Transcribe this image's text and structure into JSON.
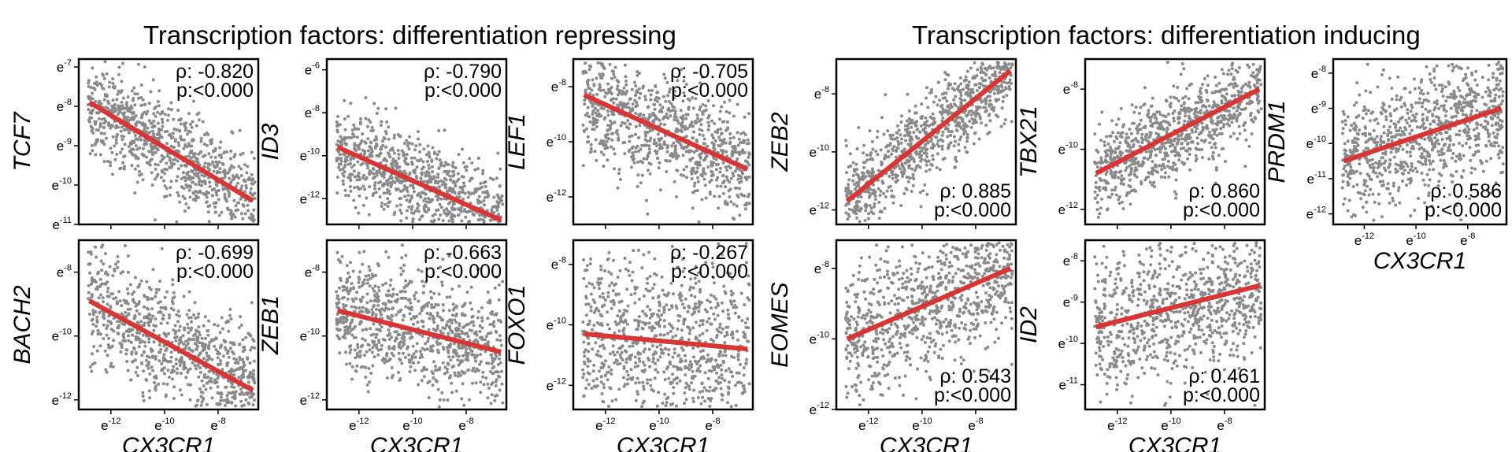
{
  "group_titles": {
    "left": "Transcription factors: differentiation repressing",
    "right": "Transcription factors: differentiation inducing"
  },
  "colors": {
    "points": "#8a8a8a",
    "fit_line": "#d93535",
    "frame": "#000000"
  },
  "chart_data": [
    {
      "type": "scatter",
      "id": "TCF7",
      "ylabel": "TCF7",
      "xlabel": "",
      "rho": "-0.820",
      "p": "<0.000",
      "xticks": [
        "-12",
        "-10",
        "-8"
      ],
      "yticks": [
        "-7",
        "-8",
        "-9",
        "-10",
        "-11"
      ],
      "xlim": [
        -13.2,
        -6.5
      ],
      "ylim": [
        -11,
        -6.8
      ],
      "fit": [
        [
          -12.8,
          -7.9
        ],
        [
          -6.7,
          -10.4
        ]
      ],
      "stats_pos": "top-right"
    },
    {
      "type": "scatter",
      "id": "ID3",
      "ylabel": "ID3",
      "xlabel": "",
      "rho": "-0.790",
      "p": "<0.000",
      "xticks": [
        "-12",
        "-10",
        "-8"
      ],
      "yticks": [
        "-6",
        "-8",
        "-10",
        "-12"
      ],
      "xlim": [
        -13.2,
        -6.5
      ],
      "ylim": [
        -13.2,
        -5.5
      ],
      "fit": [
        [
          -12.8,
          -9.6
        ],
        [
          -6.7,
          -13.0
        ]
      ],
      "stats_pos": "top-right"
    },
    {
      "type": "scatter",
      "id": "LEF1",
      "ylabel": "LEF1",
      "xlabel": "",
      "rho": "-0.705",
      "p": "<0.000",
      "xticks": [
        "-12",
        "-10",
        "-8"
      ],
      "yticks": [
        "-8",
        "-10",
        "-12"
      ],
      "xlim": [
        -13.2,
        -6.5
      ],
      "ylim": [
        -13,
        -7
      ],
      "fit": [
        [
          -12.8,
          -8.3
        ],
        [
          -6.7,
          -11.0
        ]
      ],
      "stats_pos": "top-right"
    },
    {
      "type": "scatter",
      "id": "BACH2",
      "ylabel": "BACH2",
      "xlabel": "CX3CR1",
      "rho": "-0.699",
      "p": "<0.000",
      "xticks": [
        "-12",
        "-10",
        "-8"
      ],
      "yticks": [
        "-8",
        "-10",
        "-12"
      ],
      "xlim": [
        -13.2,
        -6.5
      ],
      "ylim": [
        -12.3,
        -7
      ],
      "fit": [
        [
          -12.8,
          -8.9
        ],
        [
          -6.7,
          -11.7
        ]
      ],
      "stats_pos": "top-right"
    },
    {
      "type": "scatter",
      "id": "ZEB1",
      "ylabel": "ZEB1",
      "xlabel": "CX3CR1",
      "rho": "-0.663",
      "p": "<0.000",
      "xticks": [
        "-12",
        "-10",
        "-8"
      ],
      "yticks": [
        "-8",
        "-10",
        "-12"
      ],
      "xlim": [
        -13.2,
        -6.5
      ],
      "ylim": [
        -12.3,
        -7
      ],
      "fit": [
        [
          -12.8,
          -9.2
        ],
        [
          -6.7,
          -10.5
        ]
      ],
      "stats_pos": "top-right"
    },
    {
      "type": "scatter",
      "id": "FOXO1",
      "ylabel": "FOXO1",
      "xlabel": "CX3CR1",
      "rho": "-0.267",
      "p": "<0.000",
      "xticks": [
        "-12",
        "-10",
        "-8"
      ],
      "yticks": [
        "-8",
        "-10",
        "-12"
      ],
      "xlim": [
        -13.2,
        -6.5
      ],
      "ylim": [
        -12.8,
        -7.2
      ],
      "fit": [
        [
          -12.8,
          -10.3
        ],
        [
          -6.7,
          -10.8
        ]
      ],
      "stats_pos": "top-right"
    },
    {
      "type": "scatter",
      "id": "ZEB2",
      "ylabel": "ZEB2",
      "xlabel": "",
      "rho": "0.885",
      "p": "<0.000",
      "xticks": [
        "-12",
        "-10",
        "-8"
      ],
      "yticks": [
        "-8",
        "-10",
        "-12"
      ],
      "xlim": [
        -13.2,
        -6.5
      ],
      "ylim": [
        -12.5,
        -6.8
      ],
      "fit": [
        [
          -12.8,
          -11.7
        ],
        [
          -6.7,
          -7.2
        ]
      ],
      "stats_pos": "bottom-right"
    },
    {
      "type": "scatter",
      "id": "TBX21",
      "ylabel": "TBX21",
      "xlabel": "",
      "rho": "0.860",
      "p": "<0.000",
      "xticks": [
        "-12",
        "-10",
        "-8"
      ],
      "yticks": [
        "-8",
        "-10",
        "-12"
      ],
      "xlim": [
        -13.2,
        -6.5
      ],
      "ylim": [
        -12.5,
        -7
      ],
      "fit": [
        [
          -12.8,
          -10.8
        ],
        [
          -6.7,
          -8.0
        ]
      ],
      "stats_pos": "bottom-right"
    },
    {
      "type": "scatter",
      "id": "PRDM1",
      "ylabel": "PRDM1",
      "xlabel": "CX3CR1",
      "rho": "0.586",
      "p": "<0.000",
      "xticks": [
        "-12",
        "-10",
        "-8"
      ],
      "yticks": [
        "-8",
        "-9",
        "-10",
        "-11",
        "-12"
      ],
      "xlim": [
        -13.2,
        -6.5
      ],
      "ylim": [
        -12.3,
        -7.6
      ],
      "fit": [
        [
          -12.8,
          -10.5
        ],
        [
          -6.7,
          -9.0
        ]
      ],
      "stats_pos": "bottom-right"
    },
    {
      "type": "scatter",
      "id": "EOMES",
      "ylabel": "EOMES",
      "xlabel": "CX3CR1",
      "rho": "0.543",
      "p": "<0.000",
      "xticks": [
        "-12",
        "-10",
        "-8"
      ],
      "yticks": [
        "-8",
        "-10",
        "-12"
      ],
      "xlim": [
        -13.2,
        -6.5
      ],
      "ylim": [
        -12,
        -7.2
      ],
      "fit": [
        [
          -12.8,
          -10.0
        ],
        [
          -6.7,
          -8.0
        ]
      ],
      "stats_pos": "bottom-right"
    },
    {
      "type": "scatter",
      "id": "ID2",
      "ylabel": "ID2",
      "xlabel": "CX3CR1",
      "rho": "0.461",
      "p": "<0.000",
      "xticks": [
        "-12",
        "-10",
        "-8"
      ],
      "yticks": [
        "-8",
        "-9",
        "-10",
        "-11"
      ],
      "xlim": [
        -13.2,
        -6.5
      ],
      "ylim": [
        -11.6,
        -7.5
      ],
      "fit": [
        [
          -12.8,
          -9.6
        ],
        [
          -6.7,
          -8.6
        ]
      ],
      "stats_pos": "bottom-right"
    }
  ]
}
